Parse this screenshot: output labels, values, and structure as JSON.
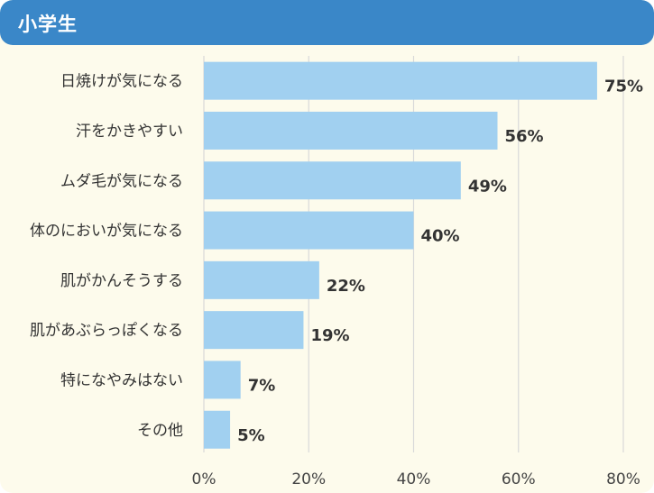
{
  "header": {
    "title": "小学生"
  },
  "colors": {
    "header_bg": "#3a87c8",
    "card_bg": "#fdfbec",
    "bar": "#a1d0f0",
    "grid": "#d9d9d9"
  },
  "chart_data": {
    "type": "bar",
    "orientation": "horizontal",
    "categories": [
      "日焼けが気になる",
      "汗をかきやすい",
      "ムダ毛が気になる",
      "体のにおいが気になる",
      "肌がかんそうする",
      "肌があぶらっぽくなる",
      "特になやみはない",
      "その他"
    ],
    "values": [
      75,
      56,
      49,
      40,
      22,
      19,
      7,
      5
    ],
    "value_labels": [
      "75%",
      "56%",
      "49%",
      "40%",
      "22%",
      "19%",
      "7%",
      "5%"
    ],
    "xlim": [
      0,
      80
    ],
    "xticks": [
      0,
      20,
      40,
      60,
      80
    ],
    "xtick_labels": [
      "0%",
      "20%",
      "40%",
      "60%",
      "80%"
    ],
    "grid": true,
    "legend": "none",
    "title": "",
    "xlabel": "",
    "ylabel": ""
  }
}
